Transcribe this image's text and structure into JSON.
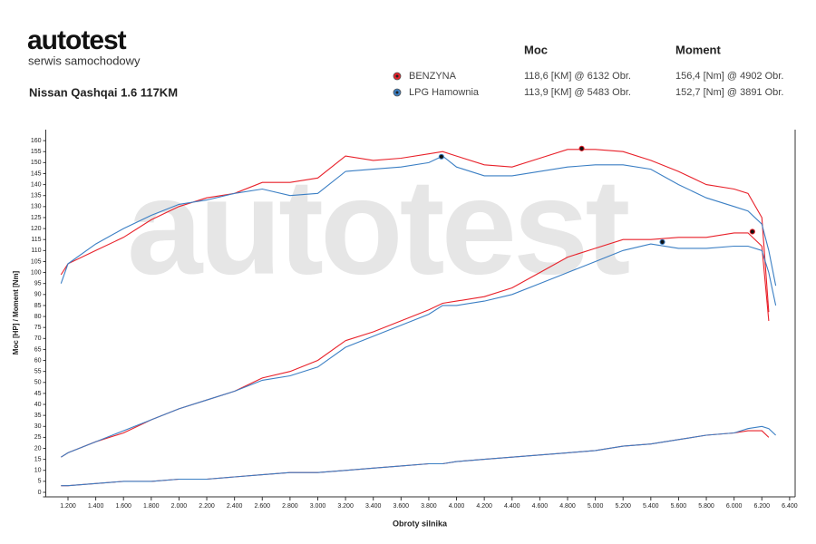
{
  "brand": {
    "logo": "autotest",
    "tagline": "serwis samochodowy"
  },
  "chart_data": {
    "type": "line",
    "title": "Nissan Qashqai 1.6 117KM",
    "watermark": "autotest",
    "legend_headers": [
      "Moc",
      "Moment"
    ],
    "ylabel": "Moc [HP] / Moment [Nm]",
    "xlabel": "Obroty silnika",
    "xlim": [
      1040,
      6440
    ],
    "ylim": [
      0,
      165
    ],
    "xticks": [
      {
        "value": 1200,
        "label": "1.200"
      },
      {
        "value": 1400,
        "label": "1.400"
      },
      {
        "value": 1600,
        "label": "1.600"
      },
      {
        "value": 1800,
        "label": "1.800"
      },
      {
        "value": 2000,
        "label": "2.000"
      },
      {
        "value": 2200,
        "label": "2.200"
      },
      {
        "value": 2400,
        "label": "2.400"
      },
      {
        "value": 2600,
        "label": "2.600"
      },
      {
        "value": 2800,
        "label": "2.800"
      },
      {
        "value": 3000,
        "label": "3.000"
      },
      {
        "value": 3200,
        "label": "3.200"
      },
      {
        "value": 3400,
        "label": "3.400"
      },
      {
        "value": 3600,
        "label": "3.600"
      },
      {
        "value": 3800,
        "label": "3.800"
      },
      {
        "value": 4000,
        "label": "4.000"
      },
      {
        "value": 4200,
        "label": "4.200"
      },
      {
        "value": 4400,
        "label": "4.400"
      },
      {
        "value": 4600,
        "label": "4.600"
      },
      {
        "value": 4800,
        "label": "4.800"
      },
      {
        "value": 5000,
        "label": "5.000"
      },
      {
        "value": 5200,
        "label": "5.200"
      },
      {
        "value": 5400,
        "label": "5.400"
      },
      {
        "value": 5600,
        "label": "5.600"
      },
      {
        "value": 5800,
        "label": "5.800"
      },
      {
        "value": 6000,
        "label": "6.000"
      },
      {
        "value": 6200,
        "label": "6.200"
      },
      {
        "value": 6400,
        "label": "6.400"
      }
    ],
    "yticks": [
      0,
      5,
      10,
      15,
      20,
      25,
      30,
      35,
      40,
      45,
      50,
      55,
      60,
      65,
      70,
      75,
      80,
      85,
      90,
      95,
      100,
      105,
      110,
      115,
      120,
      125,
      130,
      135,
      140,
      145,
      150,
      155,
      160
    ],
    "x": [
      1150,
      1200,
      1400,
      1600,
      1800,
      2000,
      2200,
      2400,
      2600,
      2800,
      3000,
      3200,
      3400,
      3600,
      3800,
      3900,
      4000,
      4200,
      4400,
      4600,
      4800,
      5000,
      5200,
      5400,
      5600,
      5800,
      6000,
      6100,
      6200,
      6250,
      6300
    ],
    "series": [
      {
        "name": "BENZYNA",
        "color": "#e8212a",
        "moc": "118,6 [KM] @ 6132 Obr.",
        "moment": "156,4 [Nm] @ 4902 Obr.",
        "lines": [
          [
            99,
            104,
            110,
            116,
            124,
            130,
            134,
            136,
            141,
            141,
            143,
            153,
            151,
            152,
            154,
            155,
            153,
            149,
            148,
            152,
            156,
            156,
            155,
            151,
            146,
            140,
            138,
            136,
            125,
            82,
            null
          ],
          [
            16,
            18,
            23,
            27,
            33,
            38,
            42,
            46,
            52,
            55,
            60,
            69,
            73,
            78,
            83,
            86,
            87,
            89,
            93,
            100,
            107,
            111,
            115,
            115,
            116,
            116,
            118,
            118,
            112,
            78,
            null
          ],
          [
            3,
            3,
            4,
            5,
            5,
            6,
            6,
            7,
            8,
            9,
            9,
            10,
            11,
            12,
            13,
            13,
            14,
            15,
            16,
            17,
            18,
            19,
            21,
            22,
            24,
            26,
            27,
            28,
            28,
            25,
            null
          ]
        ],
        "peaks": [
          {
            "x": 4902,
            "y": 156.4
          },
          {
            "x": 6132,
            "y": 118.6
          }
        ]
      },
      {
        "name": "LPG Hamownia",
        "color": "#3b7fc4",
        "moc": "113,9 [KM] @ 5483 Obr.",
        "moment": "152,7 [Nm] @ 3891 Obr.",
        "lines": [
          [
            95,
            104,
            113,
            120,
            126,
            131,
            133,
            136,
            138,
            135,
            136,
            146,
            147,
            148,
            150,
            153,
            148,
            144,
            144,
            146,
            148,
            149,
            149,
            147,
            140,
            134,
            130,
            128,
            122,
            110,
            94
          ],
          [
            16,
            18,
            23,
            28,
            33,
            38,
            42,
            46,
            51,
            53,
            57,
            66,
            71,
            76,
            81,
            85,
            85,
            87,
            90,
            95,
            100,
            105,
            110,
            113,
            111,
            111,
            112,
            112,
            110,
            100,
            85
          ],
          [
            3,
            3,
            4,
            5,
            5,
            6,
            6,
            7,
            8,
            9,
            9,
            10,
            11,
            12,
            13,
            13,
            14,
            15,
            16,
            17,
            18,
            19,
            21,
            22,
            24,
            26,
            27,
            29,
            30,
            29,
            26
          ]
        ],
        "peaks": [
          {
            "x": 3891,
            "y": 152.7
          },
          {
            "x": 5483,
            "y": 113.9
          }
        ]
      }
    ]
  }
}
